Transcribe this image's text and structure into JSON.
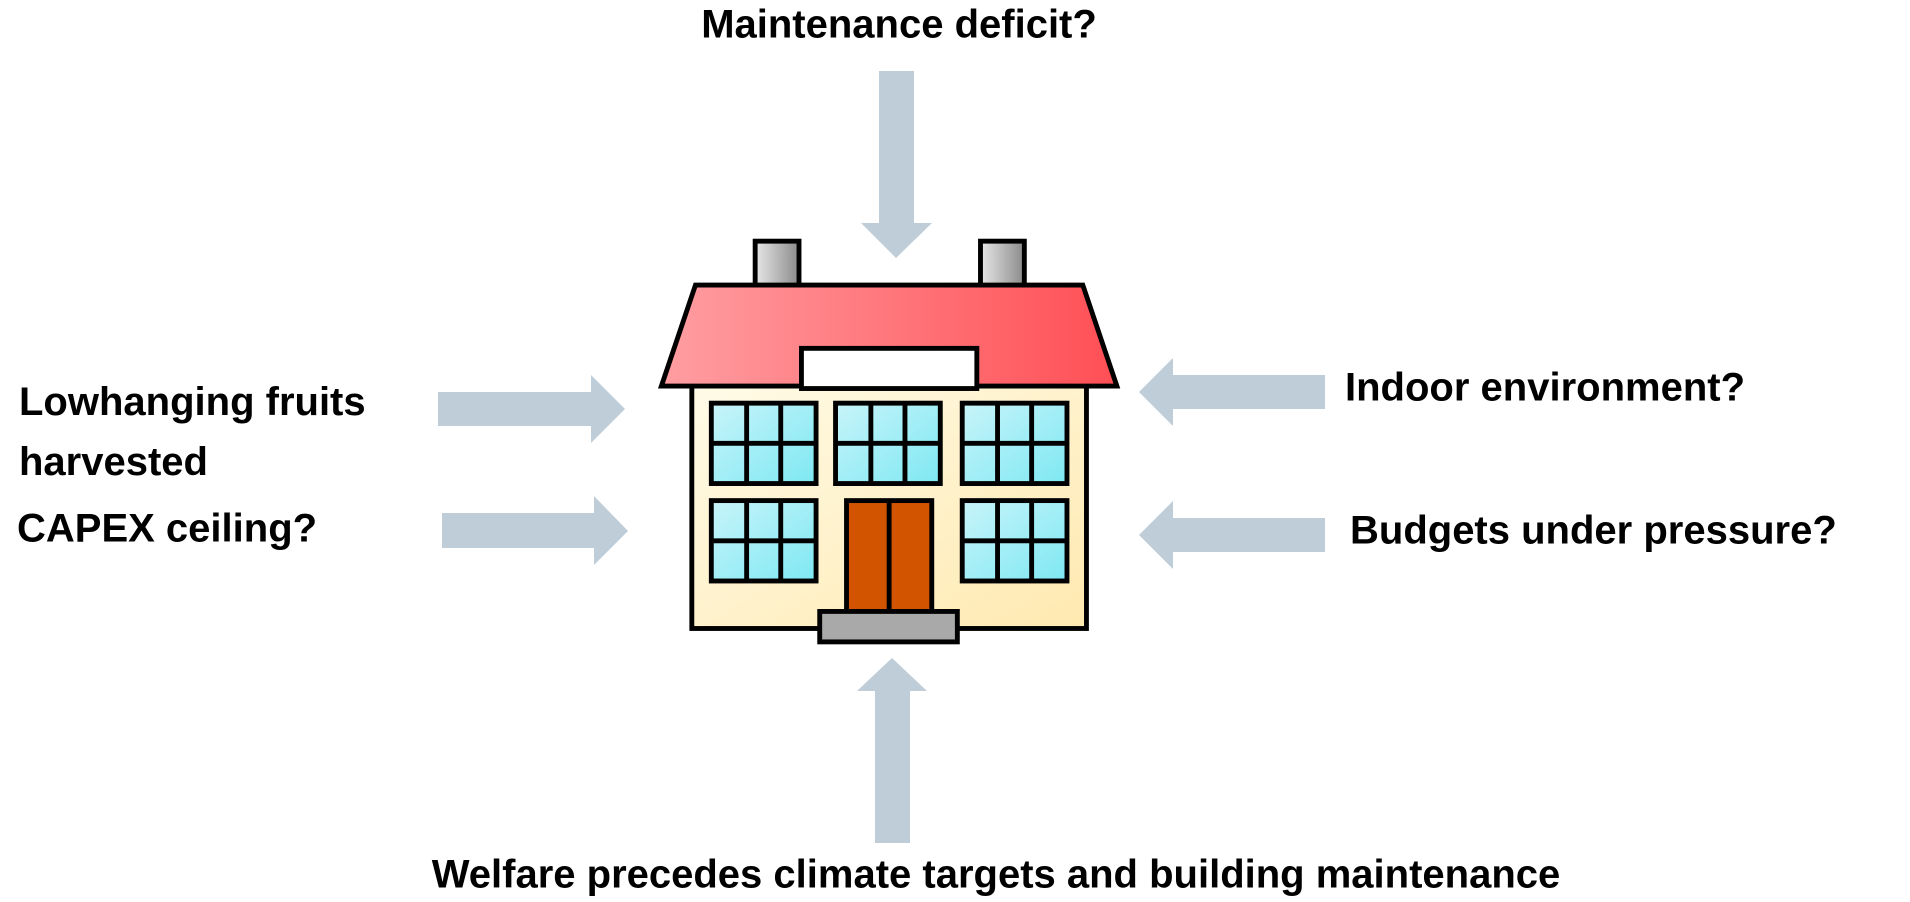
{
  "title": "Maintenance deficit?",
  "left_labels": [
    {
      "lines": [
        "Lowhanging fruits",
        "harvested"
      ]
    },
    {
      "lines": [
        "CAPEX ceiling?"
      ]
    }
  ],
  "right_labels": [
    {
      "lines": [
        "Indoor environment?"
      ]
    },
    {
      "lines": [
        "Budgets under pressure?"
      ]
    }
  ],
  "bottom_label": "Welfare precedes climate targets and building maintenance"
}
